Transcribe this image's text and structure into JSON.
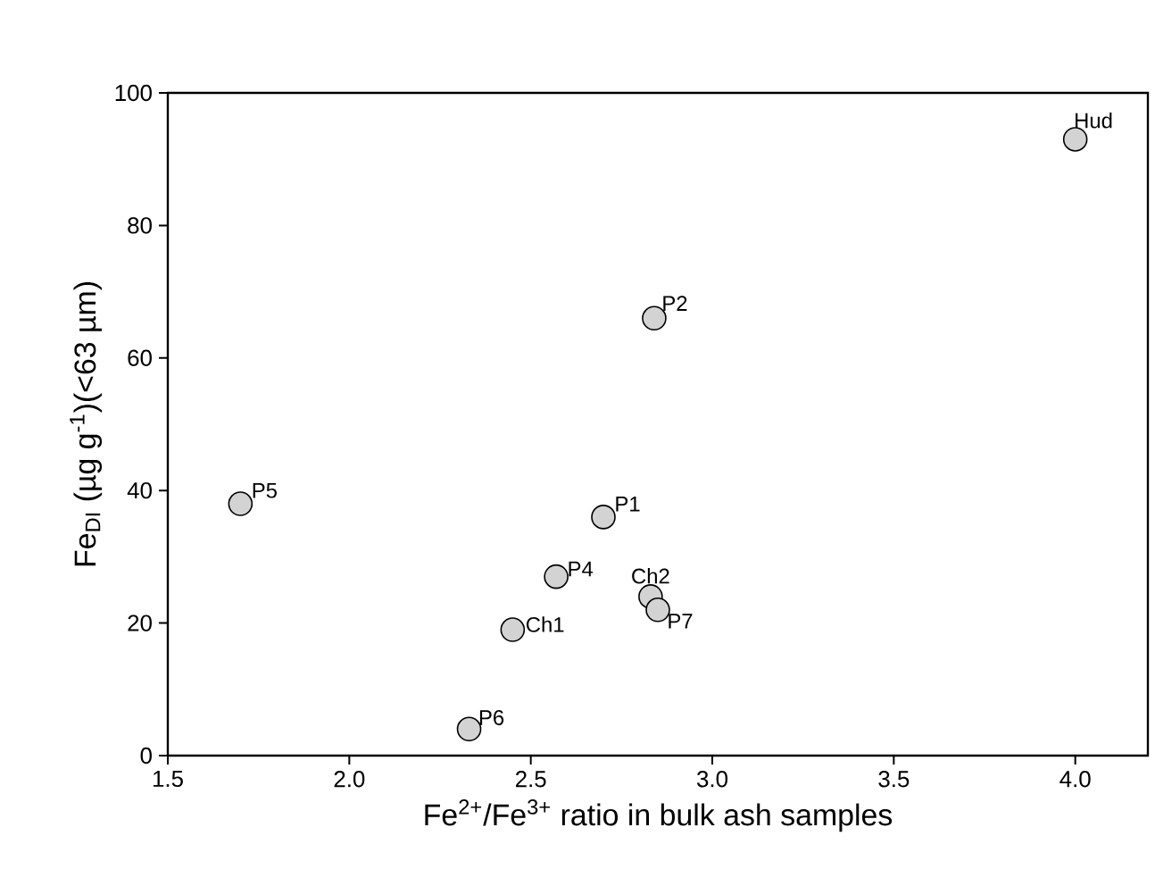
{
  "chart_data": {
    "type": "scatter",
    "xlabel": "Fe$^{2+}$/Fe$^{3+}$ ratio in  bulk ash samples",
    "ylabel": "Fe$_{DI}$ (µg g$^{-1}$)(<63 µm)",
    "x": [
      4.0,
      2.84,
      1.7,
      2.7,
      2.57,
      2.83,
      2.85,
      2.45,
      2.33
    ],
    "series": [
      {
        "color": "#d3d3d3",
        "values": [
          93,
          66,
          38,
          36,
          27,
          24,
          22,
          19,
          4
        ]
      }
    ],
    "marker": "circle",
    "xlim": [
      1.5,
      4.2
    ],
    "ylim": [
      0,
      100
    ],
    "xticks": [
      1.5,
      {
        "value": 2,
        "label": "2.0"
      },
      2.5,
      {
        "value": 3,
        "label": "3.0"
      },
      3.5,
      {
        "value": 4,
        "label": "4.0"
      }
    ],
    "yticks": [
      0,
      20,
      40,
      60,
      80,
      100
    ],
    "grid": false,
    "annotations": [
      {
        "text": "Hud",
        "x": 4.0,
        "y": 93
      },
      {
        "text": "P2",
        "x": 2.84,
        "y": 66
      },
      {
        "text": "P5",
        "x": 1.7,
        "y": 38
      },
      {
        "text": "P1",
        "x": 2.7,
        "y": 36
      },
      {
        "text": "P4",
        "x": 2.57,
        "y": 27
      },
      {
        "text": "Ch2",
        "x": 2.83,
        "y": 24
      },
      {
        "text": "P7",
        "x": 2.85,
        "y": 22
      },
      {
        "text": "Ch1",
        "x": 2.45,
        "y": 19
      },
      {
        "text": "P6",
        "x": 2.33,
        "y": 4
      }
    ]
  }
}
